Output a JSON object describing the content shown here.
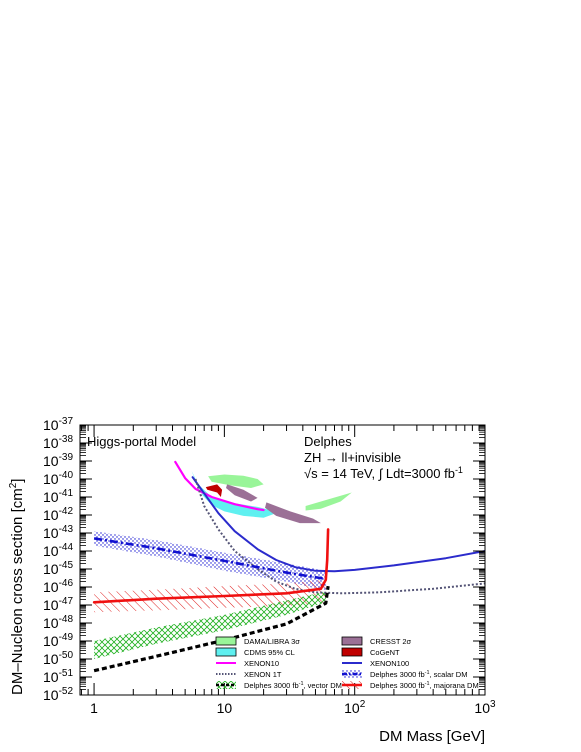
{
  "chart_data": {
    "type": "line",
    "xlabel": "DM Mass [GeV]",
    "ylabel": "DM–Nucleon cross section [cm",
    "ylabel_sup": "2",
    "ylabel_close": "]",
    "x_scale": "log",
    "y_scale": "log",
    "xlim": [
      0.78,
      1000
    ],
    "ylim": [
      1e-52,
      1e-37
    ],
    "x_ticks": [
      {
        "value": 1,
        "label": "1"
      },
      {
        "value": 10,
        "label": "10"
      },
      {
        "value": 100,
        "label": "10",
        "sup": "2"
      },
      {
        "value": 1000,
        "label": "10",
        "sup": "3"
      }
    ],
    "y_ticks": [
      {
        "exp": -37,
        "base": "10",
        "sup": "-37"
      },
      {
        "exp": -38,
        "base": "10",
        "sup": "-38"
      },
      {
        "exp": -39,
        "base": "10",
        "sup": "-39"
      },
      {
        "exp": -40,
        "base": "10",
        "sup": "-40"
      },
      {
        "exp": -41,
        "base": "10",
        "sup": "-41"
      },
      {
        "exp": -42,
        "base": "10",
        "sup": "-42"
      },
      {
        "exp": -43,
        "base": "10",
        "sup": "-43"
      },
      {
        "exp": -44,
        "base": "10",
        "sup": "-44"
      },
      {
        "exp": -45,
        "base": "10",
        "sup": "-45"
      },
      {
        "exp": -46,
        "base": "10",
        "sup": "-46"
      },
      {
        "exp": -47,
        "base": "10",
        "sup": "-47"
      },
      {
        "exp": -48,
        "base": "10",
        "sup": "-48"
      },
      {
        "exp": -49,
        "base": "10",
        "sup": "-49"
      },
      {
        "exp": -50,
        "base": "10",
        "sup": "-50"
      },
      {
        "exp": -51,
        "base": "10",
        "sup": "-51"
      },
      {
        "exp": -52,
        "base": "10",
        "sup": "-52"
      }
    ],
    "annotations": {
      "model": "Higgs-portal Model",
      "delphes": "Delphes",
      "channel": "ZH → ll+invisible",
      "energy_prefix": "√s = 14 TeV, ∫ Ldt=3000 fb",
      "energy_sup": "-1"
    },
    "regions": [
      {
        "name": "DAMA/LIBRA 3σ",
        "color": "#99f599",
        "type": "fill",
        "points": [
          [
            7.5,
            -39.85
          ],
          [
            10,
            -39.75
          ],
          [
            14,
            -39.82
          ],
          [
            18,
            -40.0
          ],
          [
            20,
            -40.3
          ],
          [
            16,
            -40.5
          ],
          [
            11,
            -40.35
          ],
          [
            8,
            -40.15
          ]
        ]
      },
      {
        "name": "DAMA/LIBRA 3σ",
        "color": "#99f599",
        "type": "fill",
        "points": [
          [
            42,
            -41.5
          ],
          [
            65,
            -41.1
          ],
          [
            95,
            -40.75
          ],
          [
            78,
            -41.25
          ],
          [
            55,
            -41.65
          ],
          [
            42,
            -41.75
          ]
        ]
      },
      {
        "name": "CDMS 95% CL",
        "color": "#5ff0f0",
        "type": "fill",
        "points": [
          [
            5.6,
            -39.55
          ],
          [
            6.3,
            -40.3
          ],
          [
            8,
            -41.0
          ],
          [
            12,
            -41.35
          ],
          [
            18,
            -41.55
          ],
          [
            26,
            -41.85
          ],
          [
            20,
            -42.15
          ],
          [
            14,
            -42.05
          ],
          [
            10,
            -41.8
          ],
          [
            8,
            -41.45
          ],
          [
            6.8,
            -40.9
          ],
          [
            6,
            -40.1
          ]
        ]
      },
      {
        "name": "CRESST 2σ",
        "color": "#9b7096",
        "type": "fill",
        "points": [
          [
            10.5,
            -40.3
          ],
          [
            14,
            -40.6
          ],
          [
            18,
            -41.05
          ],
          [
            16,
            -41.25
          ],
          [
            12,
            -40.9
          ],
          [
            10.3,
            -40.5
          ]
        ]
      },
      {
        "name": "CRESST 2σ",
        "color": "#9b7096",
        "type": "fill",
        "points": [
          [
            21,
            -41.3
          ],
          [
            32,
            -41.8
          ],
          [
            48,
            -42.2
          ],
          [
            55,
            -42.45
          ],
          [
            38,
            -42.45
          ],
          [
            25,
            -42.05
          ],
          [
            20.5,
            -41.6
          ]
        ]
      },
      {
        "name": "CoGeNT",
        "color": "#c00000",
        "type": "fill",
        "points": [
          [
            7.2,
            -40.45
          ],
          [
            8.8,
            -40.3
          ],
          [
            9.6,
            -40.6
          ],
          [
            9.4,
            -41.0
          ],
          [
            8.8,
            -40.75
          ],
          [
            7.4,
            -40.6
          ]
        ]
      },
      {
        "name": "Delphes 3000 fb^-1, scalar DM band",
        "color": "#1010d0",
        "type": "hatch-dots",
        "points": [
          [
            1,
            -42.9
          ],
          [
            3,
            -43.4
          ],
          [
            10,
            -44.1
          ],
          [
            30,
            -44.7
          ],
          [
            60,
            -45.1
          ],
          [
            60,
            -46.2
          ],
          [
            30,
            -45.7
          ],
          [
            10,
            -45.1
          ],
          [
            3,
            -44.3
          ],
          [
            1,
            -43.7
          ]
        ]
      },
      {
        "name": "Delphes 3000 fb^-1, majorana DM band",
        "color": "#e02020",
        "type": "hatch-lines",
        "points": [
          [
            1,
            -46.3
          ],
          [
            3,
            -46.15
          ],
          [
            10,
            -45.95
          ],
          [
            30,
            -45.8
          ],
          [
            60,
            -45.6
          ],
          [
            60,
            -46.9
          ],
          [
            30,
            -47.05
          ],
          [
            10,
            -47.15
          ],
          [
            3,
            -47.3
          ],
          [
            1,
            -47.4
          ]
        ]
      },
      {
        "name": "Delphes 3000 fb^-1, vector DM band",
        "color": "#20b020",
        "type": "hatch-cross",
        "points": [
          [
            1,
            -50.0
          ],
          [
            3,
            -49.15
          ],
          [
            10,
            -48.4
          ],
          [
            30,
            -47.55
          ],
          [
            60,
            -46.85
          ],
          [
            60,
            -46.25
          ],
          [
            30,
            -46.75
          ],
          [
            10,
            -47.55
          ],
          [
            3,
            -48.25
          ],
          [
            1,
            -49.0
          ]
        ]
      }
    ],
    "series": [
      {
        "name": "XENON10",
        "color": "#ff00ff",
        "style": "solid",
        "width": 2.2,
        "points": [
          [
            4.2,
            -39.05
          ],
          [
            5,
            -39.95
          ],
          [
            6,
            -40.55
          ],
          [
            8,
            -41.0
          ],
          [
            12,
            -41.4
          ],
          [
            18,
            -41.68
          ],
          [
            20,
            -41.72
          ]
        ]
      },
      {
        "name": "XENON100",
        "color": "#2b2bcc",
        "style": "solid",
        "width": 2,
        "points": [
          [
            5.7,
            -39.9
          ],
          [
            7,
            -40.8
          ],
          [
            9,
            -41.9
          ],
          [
            12,
            -42.9
          ],
          [
            18,
            -43.9
          ],
          [
            25,
            -44.5
          ],
          [
            35,
            -44.9
          ],
          [
            50,
            -45.1
          ],
          [
            70,
            -45.12
          ],
          [
            100,
            -45.05
          ],
          [
            200,
            -44.8
          ],
          [
            500,
            -44.4
          ],
          [
            1000,
            -44.0
          ]
        ]
      },
      {
        "name": "XENON 1T",
        "color": "#555577",
        "style": "dotted",
        "width": 2,
        "points": [
          [
            6,
            -40.0
          ],
          [
            7,
            -41.5
          ],
          [
            9,
            -42.8
          ],
          [
            12,
            -44.0
          ],
          [
            18,
            -45.0
          ],
          [
            25,
            -45.7
          ],
          [
            35,
            -46.1
          ],
          [
            50,
            -46.3
          ],
          [
            80,
            -46.35
          ],
          [
            150,
            -46.3
          ],
          [
            400,
            -46.1
          ],
          [
            1000,
            -45.8
          ]
        ]
      },
      {
        "name": "Delphes 3000 fb^-1, scalar DM",
        "color": "#1010d0",
        "style": "dashdot",
        "width": 2.6,
        "points": [
          [
            1,
            -43.3
          ],
          [
            3,
            -43.85
          ],
          [
            10,
            -44.55
          ],
          [
            30,
            -45.2
          ],
          [
            60,
            -45.55
          ]
        ]
      },
      {
        "name": "Delphes 3000 fb^-1, majorana DM",
        "color": "#f01010",
        "style": "solid",
        "width": 2.6,
        "points": [
          [
            1,
            -46.85
          ],
          [
            3,
            -46.65
          ],
          [
            10,
            -46.5
          ],
          [
            30,
            -46.35
          ],
          [
            55,
            -46.1
          ],
          [
            60,
            -45.6
          ],
          [
            61.5,
            -44.5
          ],
          [
            62.5,
            -42.8
          ]
        ]
      },
      {
        "name": "Delphes 3000 fb^-1, vector DM",
        "color": "#000000",
        "style": "dashed",
        "width": 3.2,
        "points": [
          [
            1,
            -50.65
          ],
          [
            3,
            -49.85
          ],
          [
            10,
            -48.95
          ],
          [
            30,
            -48.05
          ],
          [
            60,
            -46.9
          ],
          [
            62.5,
            -45.95
          ]
        ]
      }
    ],
    "legend": {
      "placement": "bottom-right",
      "entries": [
        {
          "label": "DAMA/LIBRA 3σ",
          "kind": "box",
          "color": "#99f599"
        },
        {
          "label": "CRESST 2σ",
          "kind": "box",
          "color": "#9b7096"
        },
        {
          "label": "CDMS 95% CL",
          "kind": "box",
          "color": "#5ff0f0"
        },
        {
          "label": "CoGeNT",
          "kind": "box",
          "color": "#c00000"
        },
        {
          "label": "XENON10",
          "kind": "line",
          "color": "#ff00ff",
          "style": "solid"
        },
        {
          "label": "XENON100",
          "kind": "line",
          "color": "#2b2bcc",
          "style": "solid"
        },
        {
          "label": "XENON 1T",
          "kind": "line",
          "color": "#555577",
          "style": "dotted"
        },
        {
          "label": "Delphes 3000 fb",
          "sup": "-1",
          "suffix": ", scalar DM",
          "kind": "band-line",
          "color": "#1010d0",
          "style": "dashdot"
        },
        {
          "label": "Delphes 3000 fb",
          "sup": "-1",
          "suffix": ", vector DM",
          "kind": "band-line",
          "color": "#000000",
          "style": "dashed"
        },
        {
          "label": "Delphes 3000 fb",
          "sup": "-1",
          "suffix": ", majorana DM",
          "kind": "band-line",
          "color": "#f01010",
          "style": "solid"
        }
      ]
    }
  }
}
